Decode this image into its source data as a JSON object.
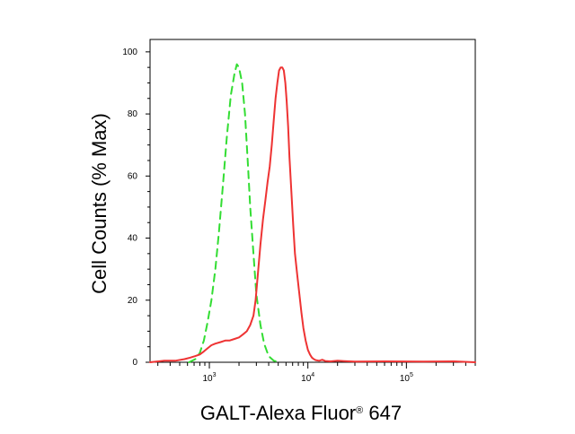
{
  "chart_data": {
    "type": "line",
    "xlabel": "GALT-Alexa Fluor® 647",
    "ylabel": "Cell Counts (% Max)",
    "x_scale": "log",
    "xlim": [
      250,
      500000
    ],
    "ylim": [
      0,
      104
    ],
    "y_ticks": [
      0,
      20,
      40,
      60,
      80,
      100
    ],
    "y_tick_labels": [
      "0",
      "20",
      "40",
      "60",
      "80",
      "100"
    ],
    "x_ticks": [
      1000,
      10000,
      100000
    ],
    "x_tick_labels": [
      {
        "base": "10",
        "exp": "3"
      },
      {
        "base": "10",
        "exp": "4"
      },
      {
        "base": "10",
        "exp": "5"
      }
    ],
    "legend": "none",
    "grid": false,
    "series": [
      {
        "color": "#33dd33",
        "dash": "dashed",
        "x": [
          620,
          720,
          800,
          880,
          960,
          1050,
          1150,
          1250,
          1380,
          1500,
          1650,
          1800,
          1900,
          2000,
          2150,
          2300,
          2450,
          2600,
          2800,
          3000,
          3300,
          3600,
          4000,
          4500,
          5200
        ],
        "y": [
          0,
          1,
          3,
          7,
          13,
          20,
          30,
          42,
          58,
          72,
          86,
          93,
          96,
          95,
          90,
          80,
          65,
          50,
          35,
          22,
          12,
          6,
          2,
          0.5,
          0
        ]
      },
      {
        "color": "#ee3333",
        "dash": "solid",
        "x": [
          250,
          350,
          450,
          560,
          640,
          720,
          800,
          880,
          960,
          1050,
          1150,
          1300,
          1450,
          1600,
          1800,
          2000,
          2200,
          2400,
          2600,
          2800,
          2950,
          3100,
          3300,
          3500,
          3700,
          3900,
          4100,
          4300,
          4500,
          4700,
          4900,
          5100,
          5300,
          5500,
          5700,
          5900,
          6100,
          6300,
          6500,
          6800,
          7100,
          7400,
          7800,
          8200,
          8600,
          9000,
          9500,
          10000,
          10500,
          11000,
          11500,
          12000,
          13000,
          14000,
          15000,
          17000,
          20000,
          30000,
          60000,
          150000,
          300000,
          500000
        ],
        "y": [
          0,
          0.5,
          0.5,
          1,
          1.5,
          2,
          2.5,
          3.5,
          4.5,
          5.5,
          6,
          6.5,
          7,
          7,
          7.5,
          8,
          9,
          10,
          12,
          15,
          20,
          28,
          38,
          46,
          52,
          58,
          63,
          70,
          78,
          85,
          90,
          94,
          95,
          95,
          94,
          90,
          84,
          76,
          66,
          55,
          44,
          35,
          28,
          22,
          16,
          11,
          7,
          4,
          2.5,
          1.5,
          1,
          0.7,
          0.5,
          0.8,
          0.4,
          0.3,
          0.5,
          0.2,
          0.3,
          0.2,
          0.3,
          0
        ]
      }
    ]
  }
}
